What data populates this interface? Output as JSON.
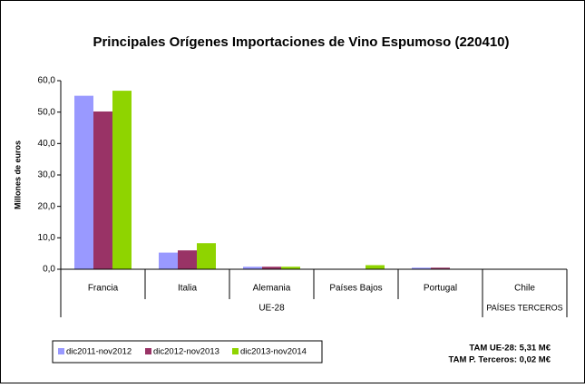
{
  "chart_data": {
    "type": "bar",
    "title": "Principales Orígenes Importaciones de Vino Espumoso (220410)",
    "y_label": "Millones de euros",
    "categories": [
      "Francia",
      "Italia",
      "Alemania",
      "Países Bajos",
      "Portugal",
      "Chile"
    ],
    "groups": [
      "UE-28",
      "PAÍSES TERCEROS"
    ],
    "series": [
      {
        "name": "dic2011-nov2012",
        "color": "#9999ff",
        "values": [
          55.2,
          5.3,
          0.8,
          0,
          0.5,
          0
        ]
      },
      {
        "name": "dic2012-nov2013",
        "color": "#993366",
        "values": [
          50.2,
          6.0,
          0.8,
          0,
          0.5,
          0
        ]
      },
      {
        "name": "dic2013-nov2014",
        "color": "#8fd400",
        "values": [
          56.8,
          8.3,
          0.8,
          1.3,
          0.1,
          0
        ]
      }
    ],
    "ylim": [
      0,
      60
    ],
    "yticks": [
      {
        "value": 0,
        "label": "0,0"
      },
      {
        "value": 10,
        "label": "10,0"
      },
      {
        "value": 20,
        "label": "20,0"
      },
      {
        "value": 30,
        "label": "30,0"
      },
      {
        "value": 40,
        "label": "40,0"
      },
      {
        "value": 50,
        "label": "50,0"
      },
      {
        "value": 60,
        "label": "60,0"
      }
    ],
    "notes": [
      "TAM UE-28: 5,31 M€",
      "TAM P. Terceros: 0,02 M€"
    ]
  }
}
